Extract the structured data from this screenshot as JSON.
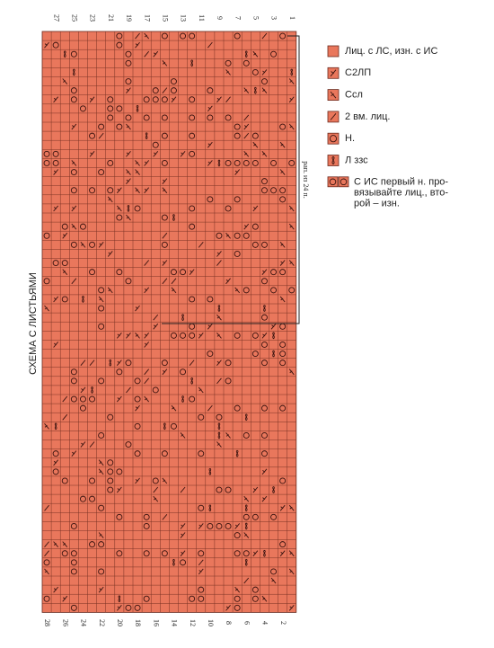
{
  "title": "СХЕМА С ЛИСТЬЯМИ",
  "repeat_label": "рап. из 24 п.",
  "column_numbers_top": [
    27,
    25,
    23,
    21,
    19,
    17,
    15,
    13,
    11,
    9,
    7,
    5,
    3,
    1
  ],
  "column_numbers_bottom": [
    28,
    26,
    24,
    22,
    20,
    18,
    16,
    14,
    12,
    10,
    8,
    6,
    4,
    2
  ],
  "legend": [
    {
      "label": "Лиц. с ЛС, изн. с ИС"
    },
    {
      "label": "С2ЛП"
    },
    {
      "label": "Ссл"
    },
    {
      "label": "2 вм. лиц."
    },
    {
      "label": "Н."
    },
    {
      "label": "Л ззс"
    },
    {
      "lines": [
        "С ИС первый н. про-",
        "вязывайте лиц., вто-",
        "рой – изн."
      ]
    }
  ]
}
